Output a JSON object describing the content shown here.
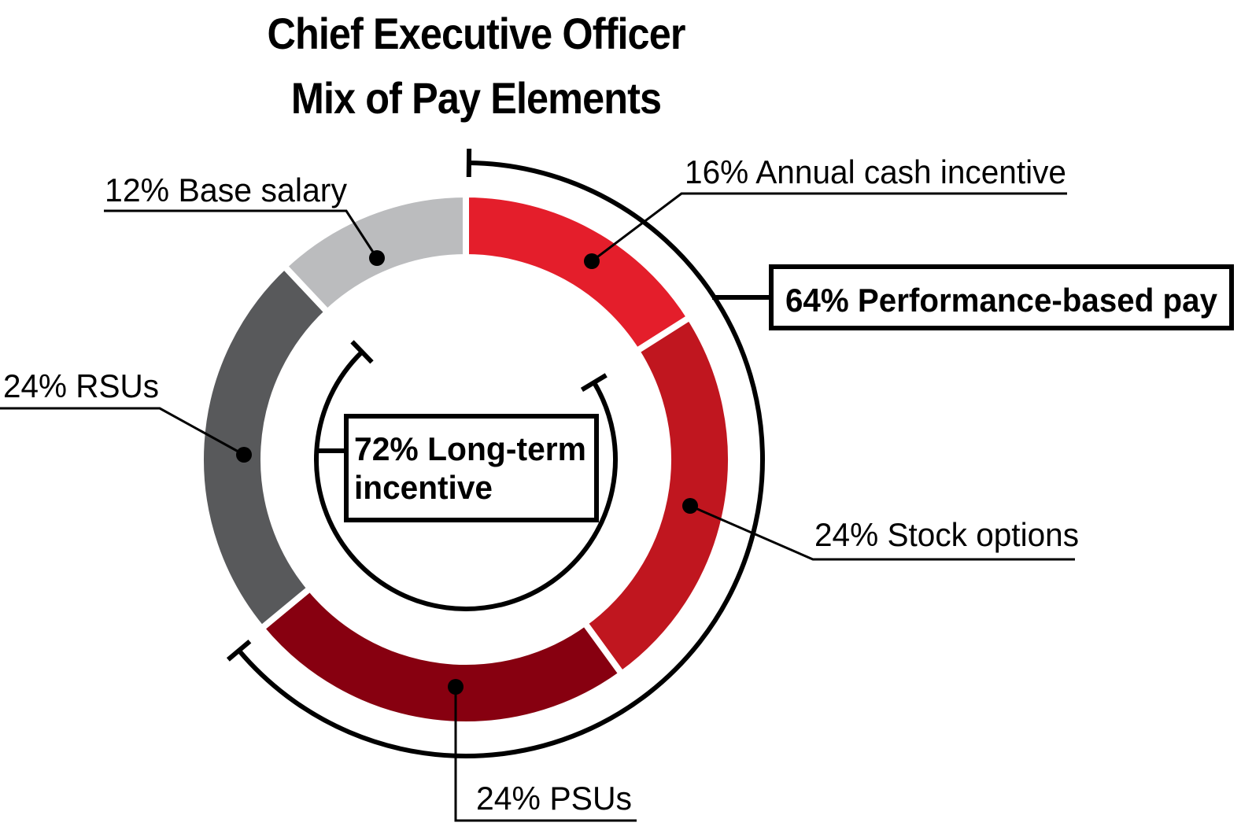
{
  "chart_data": {
    "type": "pie",
    "title_lines": [
      "Chief Executive Officer",
      "Mix of Pay Elements"
    ],
    "slices": [
      {
        "label": "16% Annual cash incentive",
        "value": 16,
        "color": "#E41E2B"
      },
      {
        "label": "24% Stock options",
        "value": 24,
        "color": "#C0161F"
      },
      {
        "label": "24% PSUs",
        "value": 24,
        "color": "#870010"
      },
      {
        "label": "24% RSUs",
        "value": 24,
        "color": "#58595B"
      },
      {
        "label": "12% Base salary",
        "value": 12,
        "color": "#BBBCBE"
      }
    ],
    "group_labels": {
      "performance": "64% Performance-based pay",
      "long_term_line1": "72% Long-term",
      "long_term_line2": "incentive"
    }
  }
}
